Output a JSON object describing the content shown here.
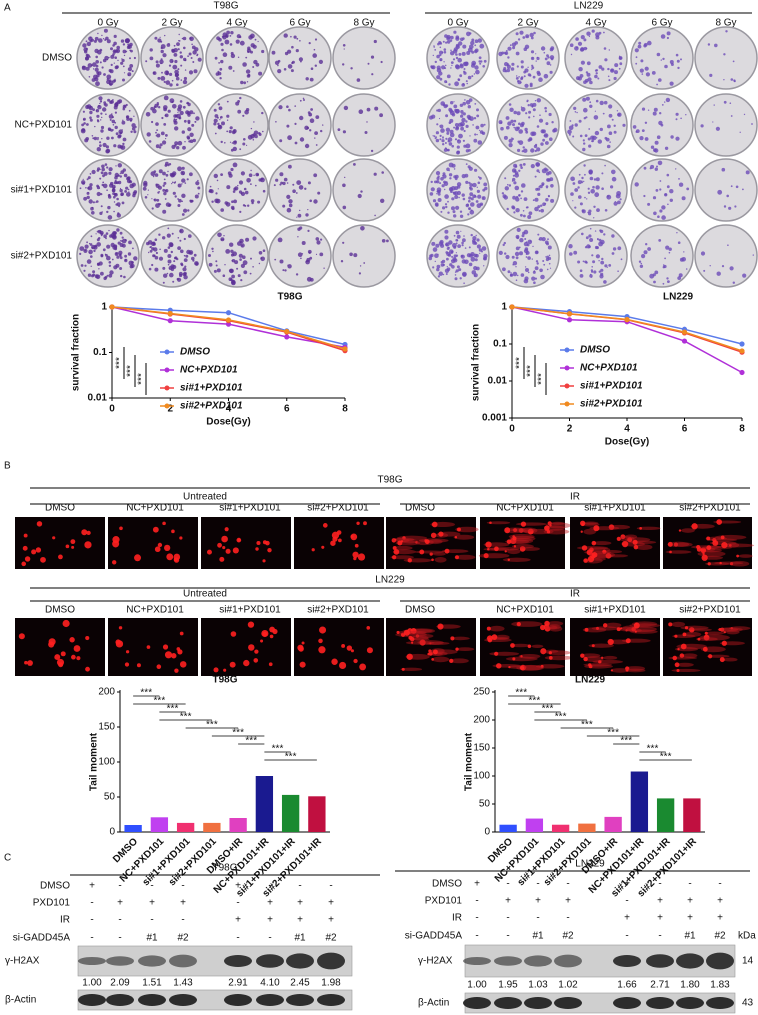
{
  "panel_labels": [
    "A",
    "B",
    "C"
  ],
  "clonogenic": {
    "row_labels": [
      "DMSO",
      "NC+PXD101",
      "si#1+PXD101",
      "si#2+PXD101"
    ],
    "cell_lines": [
      {
        "title": "T98G",
        "doses": [
          "0 Gy",
          "2 Gy",
          "4 Gy",
          "6 Gy",
          "8 Gy"
        ]
      },
      {
        "title": "LN229",
        "doses": [
          "0 Gy",
          "2 Gy",
          "4 Gy",
          "6 Gy",
          "8 Gy"
        ]
      }
    ]
  },
  "chart_data": [
    {
      "type": "line",
      "title": "T98G",
      "x_label": "Dose(Gy)",
      "y_label": "survival fraction",
      "log_y": true,
      "x": [
        0,
        2,
        4,
        6,
        8
      ],
      "xlim": [
        0,
        8
      ],
      "xticks": [
        0,
        2,
        4,
        6,
        8
      ],
      "ylim": [
        0.01,
        1
      ],
      "yticks": [
        0.01,
        0.1,
        1
      ],
      "series": [
        {
          "name": "DMSO",
          "color": "#5b7bea",
          "values": [
            1,
            0.85,
            0.75,
            0.3,
            0.15
          ]
        },
        {
          "name": "NC+PXD101",
          "color": "#b030d8",
          "values": [
            1,
            0.5,
            0.42,
            0.22,
            0.13
          ]
        },
        {
          "name": "si#1+PXD101",
          "color": "#f04040",
          "values": [
            1,
            0.7,
            0.5,
            0.28,
            0.11
          ]
        },
        {
          "name": "si#2+PXD101",
          "color": "#f08a20",
          "values": [
            1,
            0.72,
            0.52,
            0.29,
            0.12
          ]
        }
      ],
      "annotations": [
        "***",
        "***",
        "***"
      ]
    },
    {
      "type": "line",
      "title": "LN229",
      "x_label": "Dose(Gy)",
      "y_label": "survival fraction",
      "log_y": true,
      "x": [
        0,
        2,
        4,
        6,
        8
      ],
      "xlim": [
        0,
        8
      ],
      "xticks": [
        0,
        2,
        4,
        6,
        8
      ],
      "ylim": [
        0.001,
        1
      ],
      "yticks": [
        0.001,
        0.01,
        0.1,
        1
      ],
      "series": [
        {
          "name": "DMSO",
          "color": "#5b7bea",
          "values": [
            1,
            0.75,
            0.55,
            0.25,
            0.1
          ]
        },
        {
          "name": "NC+PXD101",
          "color": "#b030d8",
          "values": [
            1,
            0.45,
            0.4,
            0.12,
            0.017
          ]
        },
        {
          "name": "si#1+PXD101",
          "color": "#f04040",
          "values": [
            1,
            0.65,
            0.45,
            0.2,
            0.06
          ]
        },
        {
          "name": "si#2+PXD101",
          "color": "#f08a20",
          "values": [
            1,
            0.66,
            0.46,
            0.21,
            0.065
          ]
        }
      ],
      "annotations": [
        "***",
        "***",
        "***"
      ]
    },
    {
      "type": "bar",
      "title": "T98G",
      "y_label": "Tail moment",
      "categories": [
        "DMSO",
        "NC+PXD101",
        "si#1+PXD101",
        "si#2+PXD101",
        "DMSO+IR",
        "NC+PXD101+IR",
        "si#1+PXD101+IR",
        "si#2+PXD101+IR"
      ],
      "values": [
        10,
        21,
        13,
        13,
        20,
        80,
        53,
        51
      ],
      "colors": [
        "#2f4fff",
        "#c040f0",
        "#f03070",
        "#f07040",
        "#e040c0",
        "#1a1a90",
        "#1a8a30",
        "#c01040"
      ],
      "ylim": [
        0,
        200
      ],
      "yticks": [
        0,
        50,
        100,
        150,
        200
      ],
      "annotations": [
        "***",
        "***",
        "***",
        "***",
        "***",
        "***",
        "***",
        "***",
        "***"
      ]
    },
    {
      "type": "bar",
      "title": "LN229",
      "y_label": "Tail moment",
      "categories": [
        "DMSO",
        "NC+PXD101",
        "si#1+PXD101",
        "si#2+PXD101",
        "DMSO+IR",
        "NC+PXD101+IR",
        "si#1+PXD101+IR",
        "si#2+PXD101+IR"
      ],
      "values": [
        13,
        24,
        13,
        15,
        27,
        108,
        60,
        60
      ],
      "colors": [
        "#2f4fff",
        "#c040f0",
        "#f03070",
        "#f07040",
        "#e040c0",
        "#1a1a90",
        "#1a8a30",
        "#c01040"
      ],
      "ylim": [
        0,
        250
      ],
      "yticks": [
        0,
        50,
        100,
        150,
        200,
        250
      ],
      "annotations": [
        "***",
        "***",
        "***",
        "***",
        "***",
        "***",
        "***",
        "***",
        "***"
      ]
    }
  ],
  "comet": [
    {
      "title": "T98G",
      "groups": [
        "Untreated",
        "IR"
      ],
      "labels": [
        "DMSO",
        "NC+PXD101",
        "si#1+PXD101",
        "si#2+PXD101",
        "DMSO",
        "NC+PXD101",
        "si#1+PXD101",
        "si#2+PXD101"
      ]
    },
    {
      "title": "LN229",
      "groups": [
        "Untreated",
        "IR"
      ],
      "labels": [
        "DMSO",
        "NC+PXD101",
        "si#1+PXD101",
        "si#2+PXD101",
        "DMSO",
        "NC+PXD101",
        "si#1+PXD101",
        "si#2+PXD101"
      ]
    }
  ],
  "western": [
    {
      "title": "T98G",
      "treatments": [
        {
          "label": "DMSO",
          "marks": [
            "+",
            "-",
            "-",
            "-",
            "+",
            "-",
            "-",
            "-"
          ]
        },
        {
          "label": "PXD101",
          "marks": [
            "-",
            "+",
            "+",
            "+",
            "-",
            "+",
            "+",
            "+"
          ]
        },
        {
          "label": "IR",
          "marks": [
            "-",
            "-",
            "-",
            "-",
            "+",
            "+",
            "+",
            "+"
          ]
        },
        {
          "label": "si-GADD45A",
          "marks": [
            "-",
            "-",
            "#1",
            "#2",
            "-",
            "-",
            "#1",
            "#2"
          ]
        }
      ],
      "bands": [
        {
          "label": "γ-H2AX",
          "quantification": [
            "1.00",
            "2.09",
            "1.51",
            "1.43",
            "2.91",
            "4.10",
            "2.45",
            "1.98"
          ]
        },
        {
          "label": "β-Actin"
        }
      ]
    },
    {
      "title": "LN229",
      "kda_label": "kDa",
      "treatments": [
        {
          "label": "DMSO",
          "marks": [
            "+",
            "-",
            "-",
            "-",
            "+",
            "-",
            "-",
            "-"
          ]
        },
        {
          "label": "PXD101",
          "marks": [
            "-",
            "+",
            "+",
            "+",
            "-",
            "+",
            "+",
            "+"
          ]
        },
        {
          "label": "IR",
          "marks": [
            "-",
            "-",
            "-",
            "-",
            "+",
            "+",
            "+",
            "+"
          ]
        },
        {
          "label": "si-GADD45A",
          "marks": [
            "-",
            "-",
            "#1",
            "#2",
            "-",
            "-",
            "#1",
            "#2"
          ]
        }
      ],
      "bands": [
        {
          "label": "γ-H2AX",
          "kda": "14",
          "quantification": [
            "1.00",
            "1.95",
            "1.03",
            "1.02",
            "1.66",
            "2.71",
            "1.80",
            "1.83"
          ]
        },
        {
          "label": "β-Actin",
          "kda": "43"
        }
      ]
    }
  ]
}
